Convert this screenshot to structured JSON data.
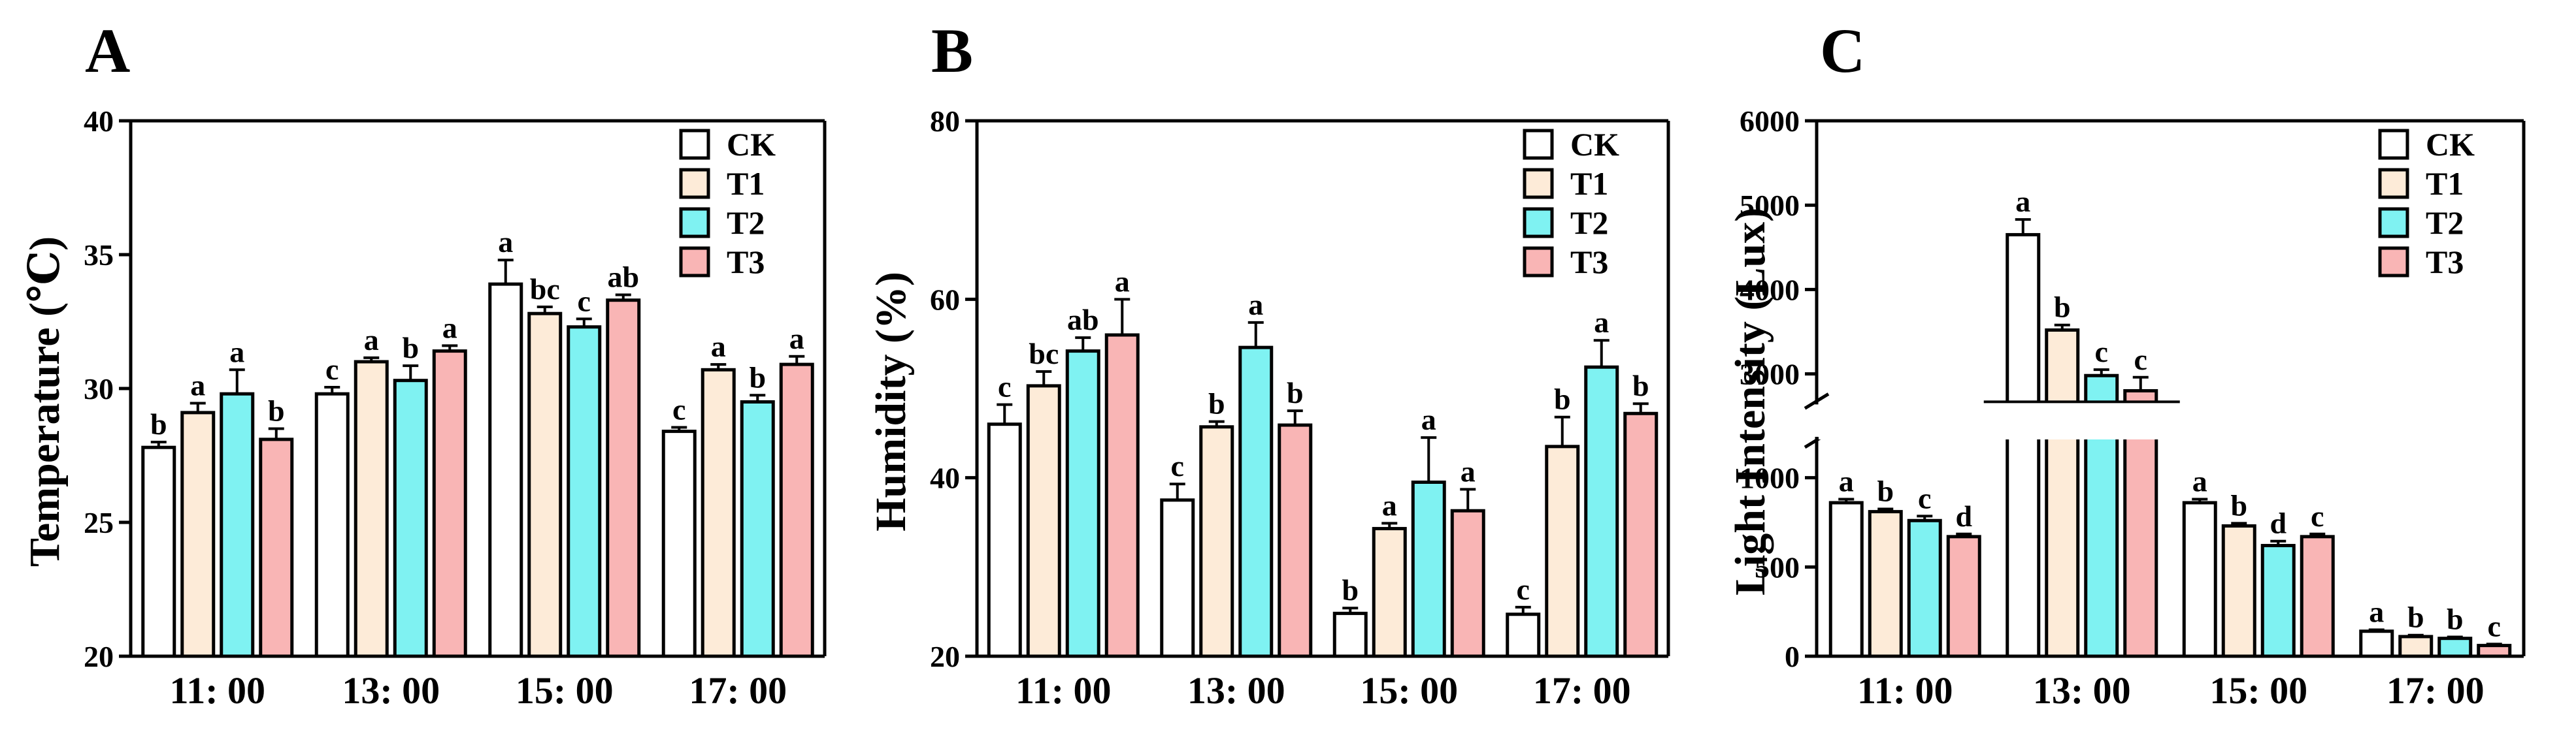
{
  "colors": {
    "CK": "#ffffff",
    "T1": "#fdebd8",
    "T2": "#7ff2f2",
    "T3": "#f9b5b5",
    "stroke": "#000000"
  },
  "chart_data": [
    {
      "panel": "A",
      "type": "bar",
      "ylabel": "Temperature (℃)",
      "ylim": [
        20,
        40
      ],
      "yticks": [
        "20",
        "25",
        "30",
        "35",
        "40"
      ],
      "categories": [
        "11: 00",
        "13: 00",
        "15: 00",
        "17: 00"
      ],
      "series": [
        {
          "name": "CK",
          "values": [
            27.8,
            29.8,
            33.9,
            28.4
          ],
          "errors": [
            0.2,
            0.25,
            0.9,
            0.15
          ],
          "letters": [
            "b",
            "c",
            "a",
            "c"
          ]
        },
        {
          "name": "T1",
          "values": [
            29.1,
            31.0,
            32.8,
            30.7
          ],
          "errors": [
            0.35,
            0.15,
            0.25,
            0.2
          ],
          "letters": [
            "a",
            "a",
            "bc",
            "a"
          ]
        },
        {
          "name": "T2",
          "values": [
            29.8,
            30.3,
            32.3,
            29.5
          ],
          "errors": [
            0.9,
            0.55,
            0.3,
            0.25
          ],
          "letters": [
            "a",
            "b",
            "c",
            "b"
          ]
        },
        {
          "name": "T3",
          "values": [
            28.1,
            31.4,
            33.3,
            30.9
          ],
          "errors": [
            0.4,
            0.2,
            0.2,
            0.3
          ],
          "letters": [
            "b",
            "a",
            "ab",
            "a"
          ]
        }
      ],
      "legend": [
        "CK",
        "T1",
        "T2",
        "T3"
      ]
    },
    {
      "panel": "B",
      "type": "bar",
      "ylabel": "Humidity (%)",
      "ylim": [
        20,
        80
      ],
      "yticks": [
        "20",
        "40",
        "60",
        "80"
      ],
      "categories": [
        "11: 00",
        "13: 00",
        "15: 00",
        "17: 00"
      ],
      "series": [
        {
          "name": "CK",
          "values": [
            46.0,
            37.5,
            24.8,
            24.7
          ],
          "errors": [
            2.2,
            1.8,
            0.6,
            0.8
          ],
          "letters": [
            "c",
            "c",
            "b",
            "c"
          ]
        },
        {
          "name": "T1",
          "values": [
            50.3,
            45.7,
            34.3,
            43.5
          ],
          "errors": [
            1.6,
            0.6,
            0.6,
            3.3
          ],
          "letters": [
            "bc",
            "b",
            "a",
            "b"
          ]
        },
        {
          "name": "T2",
          "values": [
            54.2,
            54.6,
            39.5,
            52.4
          ],
          "errors": [
            1.5,
            2.8,
            5.0,
            3.0
          ],
          "letters": [
            "ab",
            "a",
            "a",
            "a"
          ]
        },
        {
          "name": "T3",
          "values": [
            56.0,
            45.9,
            36.3,
            47.2
          ],
          "errors": [
            4.0,
            1.6,
            2.4,
            1.1
          ],
          "letters": [
            "a",
            "b",
            "a",
            "b"
          ]
        }
      ],
      "legend": [
        "CK",
        "T1",
        "T2",
        "T3"
      ]
    },
    {
      "panel": "C",
      "type": "bar",
      "ylabel": "Light Intensity (Lux)",
      "ylim": [
        0,
        6000
      ],
      "axis_break": {
        "lower": [
          0,
          1200
        ],
        "upper": [
          2700,
          6000
        ]
      },
      "yticks": [
        "0",
        "500",
        "1000",
        "3000",
        "4000",
        "5000",
        "6000"
      ],
      "categories": [
        "11: 00",
        "13: 00",
        "15: 00",
        "17: 00"
      ],
      "series": [
        {
          "name": "CK",
          "values": [
            860,
            4650,
            860,
            140
          ],
          "errors": [
            20,
            180,
            20,
            8
          ],
          "letters": [
            "a",
            "a",
            "a",
            "a"
          ]
        },
        {
          "name": "T1",
          "values": [
            810,
            3520,
            730,
            110
          ],
          "errors": [
            15,
            60,
            15,
            8
          ],
          "letters": [
            "b",
            "b",
            "b",
            "b"
          ]
        },
        {
          "name": "T2",
          "values": [
            760,
            2980,
            620,
            100
          ],
          "errors": [
            25,
            70,
            25,
            8
          ],
          "letters": [
            "c",
            "c",
            "d",
            "b"
          ]
        },
        {
          "name": "T3",
          "values": [
            670,
            2800,
            670,
            60
          ],
          "errors": [
            15,
            160,
            15,
            8
          ],
          "letters": [
            "d",
            "c",
            "c",
            "c"
          ]
        }
      ],
      "legend": [
        "CK",
        "T1",
        "T2",
        "T3"
      ]
    }
  ]
}
